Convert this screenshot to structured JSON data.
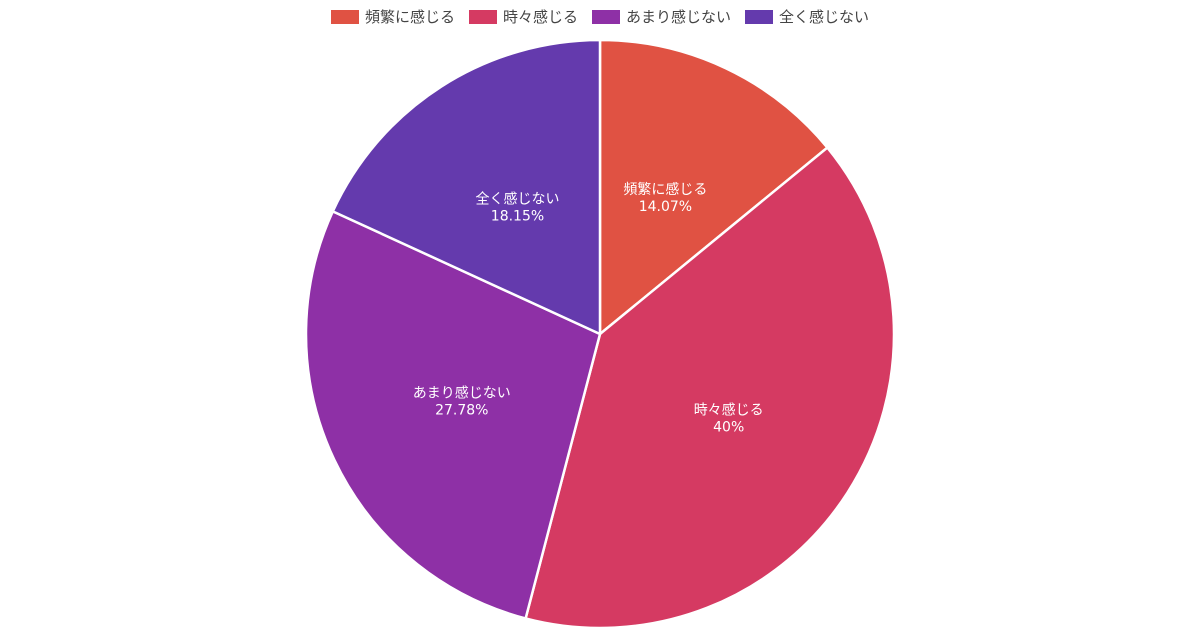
{
  "chart_data": {
    "type": "pie",
    "categories": [
      "頻繁に感じる",
      "時々感じる",
      "あまり感じない",
      "全く感じない"
    ],
    "values": [
      14.07,
      40,
      27.78,
      18.15
    ],
    "value_labels": [
      "14.07%",
      "40%",
      "27.78%",
      "18.15%"
    ],
    "colors": [
      "#e05243",
      "#d53a62",
      "#8e30a6",
      "#643aad"
    ],
    "start_angle": "12 o'clock",
    "direction": "clockwise",
    "legend_position": "top-center",
    "slice_border_color": "#ffffff"
  }
}
